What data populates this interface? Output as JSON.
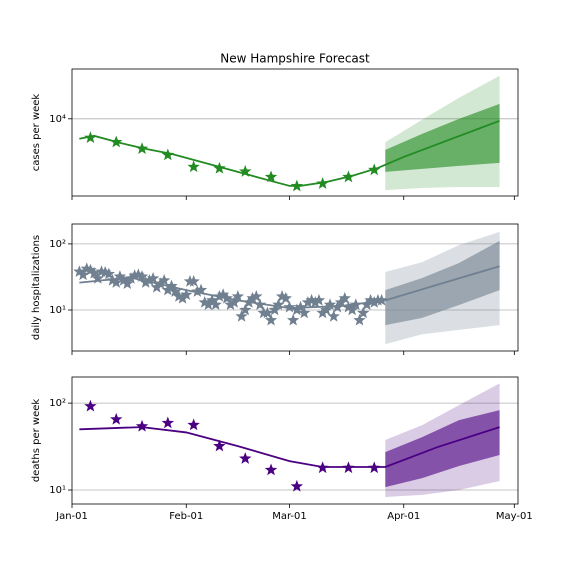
{
  "chart_data": [
    {
      "type": "line",
      "title": "New Hampshire Forecast",
      "ylabel": "cases per week",
      "log_scale": true,
      "grid": "y",
      "color": "#228b22",
      "ylim": [
        880,
        48000
      ],
      "yticks": [
        {
          "value": 10000,
          "label": "10⁴"
        }
      ],
      "observed": {
        "marker": "star",
        "x": [
          "01-06",
          "01-13",
          "01-20",
          "01-27",
          "02-03",
          "02-10",
          "02-17",
          "02-24",
          "03-03",
          "03-10",
          "03-17",
          "03-24"
        ],
        "values": [
          5500,
          4800,
          3900,
          3200,
          2200,
          2100,
          1900,
          1600,
          1200,
          1300,
          1600,
          2000
        ]
      },
      "median": {
        "x": [
          "01-03",
          "01-07",
          "01-14",
          "01-21",
          "01-28",
          "02-04",
          "02-11",
          "02-18",
          "02-25",
          "03-01",
          "03-04",
          "03-11",
          "03-18",
          "03-25",
          "04-01",
          "04-08",
          "04-15",
          "04-22",
          "04-27"
        ],
        "values": [
          5330,
          5850,
          4690,
          3880,
          3320,
          2660,
          2130,
          1710,
          1370,
          1210,
          1210,
          1370,
          1660,
          2130,
          3010,
          4090,
          5560,
          7550,
          9390
        ]
      },
      "bands": [
        {
          "opacity": 0.2,
          "x": [
            "03-27",
            "04-06",
            "04-16",
            "04-27"
          ],
          "lower": [
            1060,
            1130,
            1170,
            1170
          ],
          "upper": [
            4800,
            9700,
            19400,
            38800
          ]
        },
        {
          "opacity": 0.6,
          "x": [
            "03-27",
            "04-06",
            "04-16",
            "04-27"
          ],
          "lower": [
            1880,
            2070,
            2270,
            2500
          ],
          "upper": [
            3760,
            6230,
            10000,
            16000
          ]
        }
      ]
    },
    {
      "type": "line",
      "ylabel": "daily hospitalizations",
      "log_scale": true,
      "grid": "y",
      "color": "#708090",
      "ylim": [
        2.4,
        200
      ],
      "yticks": [
        {
          "value": 10,
          "label": "10¹"
        },
        {
          "value": 100,
          "label": "10²"
        }
      ],
      "observed": {
        "marker": "star",
        "x": [
          "01-03",
          "01-04",
          "01-05",
          "01-06",
          "01-07",
          "01-08",
          "01-09",
          "01-10",
          "01-11",
          "01-12",
          "01-13",
          "01-14",
          "01-15",
          "01-16",
          "01-17",
          "01-18",
          "01-19",
          "01-20",
          "01-21",
          "01-22",
          "01-23",
          "01-24",
          "01-25",
          "01-26",
          "01-27",
          "01-28",
          "01-29",
          "01-30",
          "01-31",
          "02-01",
          "02-02",
          "02-03",
          "02-04",
          "02-05",
          "02-06",
          "02-07",
          "02-08",
          "02-09",
          "02-10",
          "02-11",
          "02-12",
          "02-13",
          "02-14",
          "02-15",
          "02-16",
          "02-17",
          "02-18",
          "02-19",
          "02-20",
          "02-21",
          "02-22",
          "02-23",
          "02-24",
          "02-25",
          "02-26",
          "02-27",
          "02-28",
          "03-01",
          "03-02",
          "03-03",
          "03-04",
          "03-05",
          "03-06",
          "03-07",
          "03-08",
          "03-09",
          "03-10",
          "03-11",
          "03-12",
          "03-13",
          "03-14",
          "03-15",
          "03-16",
          "03-17",
          "03-18",
          "03-19",
          "03-20",
          "03-21",
          "03-22",
          "03-23",
          "03-24",
          "03-25",
          "03-26"
        ],
        "values": [
          38,
          34,
          42,
          40,
          36,
          30,
          38,
          37,
          35,
          28,
          26,
          32,
          28,
          25,
          30,
          33,
          34,
          32,
          26,
          28,
          30,
          22,
          25,
          28,
          20,
          23,
          19,
          16,
          15,
          17,
          27,
          27,
          19,
          20,
          13,
          12,
          14,
          12,
          16,
          17,
          15,
          12,
          13,
          16,
          8,
          10,
          13,
          15,
          16,
          12,
          9,
          9,
          7,
          10,
          12,
          16,
          15,
          11,
          7,
          10,
          11,
          9,
          13,
          14,
          13,
          14,
          9,
          10,
          12,
          8,
          11,
          13,
          15,
          11,
          10,
          12,
          7,
          9,
          12,
          14,
          13,
          14,
          14
        ]
      },
      "median": {
        "x": [
          "01-03",
          "01-17",
          "02-01",
          "02-15",
          "03-01",
          "03-15",
          "03-27",
          "04-10",
          "04-27"
        ],
        "values": [
          26,
          31,
          20,
          14,
          10.7,
          11.5,
          14,
          24,
          46
        ]
      },
      "bands": [
        {
          "opacity": 0.25,
          "x": [
            "03-27",
            "04-06",
            "04-16",
            "04-27"
          ],
          "lower": [
            3.05,
            4.3,
            5,
            5.9
          ],
          "upper": [
            37.6,
            53,
            96,
            152
          ]
        },
        {
          "opacity": 0.6,
          "x": [
            "03-27",
            "04-06",
            "04-16",
            "04-27"
          ],
          "lower": [
            5.9,
            7.6,
            11.9,
            20
          ],
          "upper": [
            20,
            30.5,
            51.5,
            111
          ]
        }
      ]
    },
    {
      "type": "line",
      "ylabel": "deaths per week",
      "log_scale": true,
      "grid": "y",
      "color": "#4b0082",
      "ylim": [
        6.9,
        200
      ],
      "yticks": [
        {
          "value": 10,
          "label": "10¹"
        },
        {
          "value": 100,
          "label": "10²"
        }
      ],
      "xlim": [
        "01-01",
        "05-02"
      ],
      "xticks": [
        {
          "value": "01-01",
          "label": "Jan-01"
        },
        {
          "value": "02-01",
          "label": "Feb-01"
        },
        {
          "value": "03-01",
          "label": "Mar-01"
        },
        {
          "value": "04-01",
          "label": "Apr-01"
        },
        {
          "value": "05-01",
          "label": "May-01"
        }
      ],
      "observed": {
        "marker": "star",
        "x": [
          "01-06",
          "01-13",
          "01-20",
          "01-27",
          "02-03",
          "02-10",
          "02-17",
          "02-24",
          "03-03",
          "03-10",
          "03-17",
          "03-24"
        ],
        "values": [
          92,
          65,
          54,
          59,
          56,
          32,
          23,
          17,
          11,
          18,
          18,
          18
        ]
      },
      "median": {
        "x": [
          "01-03",
          "01-20",
          "02-01",
          "02-15",
          "03-01",
          "03-10",
          "03-27",
          "04-10",
          "04-27"
        ],
        "values": [
          50,
          53,
          46,
          32,
          21.5,
          18.4,
          18.4,
          31,
          53
        ]
      },
      "bands": [
        {
          "opacity": 0.2,
          "x": [
            "03-27",
            "04-06",
            "04-16",
            "04-27"
          ],
          "lower": [
            8.3,
            8.8,
            10,
            12.7
          ],
          "upper": [
            37.6,
            55.8,
            94.8,
            169
          ]
        },
        {
          "opacity": 0.6,
          "x": [
            "03-27",
            "04-06",
            "04-16",
            "04-27"
          ],
          "lower": [
            10.8,
            13.7,
            18.9,
            25.3
          ],
          "upper": [
            27.3,
            40.6,
            63.7,
            83
          ]
        }
      ]
    }
  ]
}
